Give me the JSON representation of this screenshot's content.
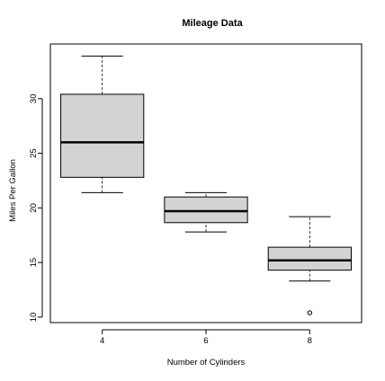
{
  "chart_data": {
    "type": "box",
    "title": "Mileage Data",
    "xlabel": "Number of Cylinders",
    "ylabel": "Miles Per Gallon",
    "ylim": [
      9.5,
      35.0
    ],
    "yticks": [
      10,
      15,
      20,
      25,
      30
    ],
    "categories": [
      "4",
      "6",
      "8"
    ],
    "boxes": [
      {
        "category": "4",
        "whisker_low": 21.4,
        "q1": 22.8,
        "median": 26.0,
        "q3": 30.4,
        "whisker_high": 33.9,
        "outliers": []
      },
      {
        "category": "6",
        "whisker_low": 17.8,
        "q1": 18.65,
        "median": 19.7,
        "q3": 21.0,
        "whisker_high": 21.4,
        "outliers": []
      },
      {
        "category": "8",
        "whisker_low": 13.3,
        "q1": 14.3,
        "median": 15.2,
        "q3": 16.4,
        "whisker_high": 19.2,
        "outliers": [
          10.4
        ]
      }
    ],
    "box_fill": "#d3d3d3",
    "line_color": "#000000",
    "grid": false,
    "legend": "none"
  }
}
